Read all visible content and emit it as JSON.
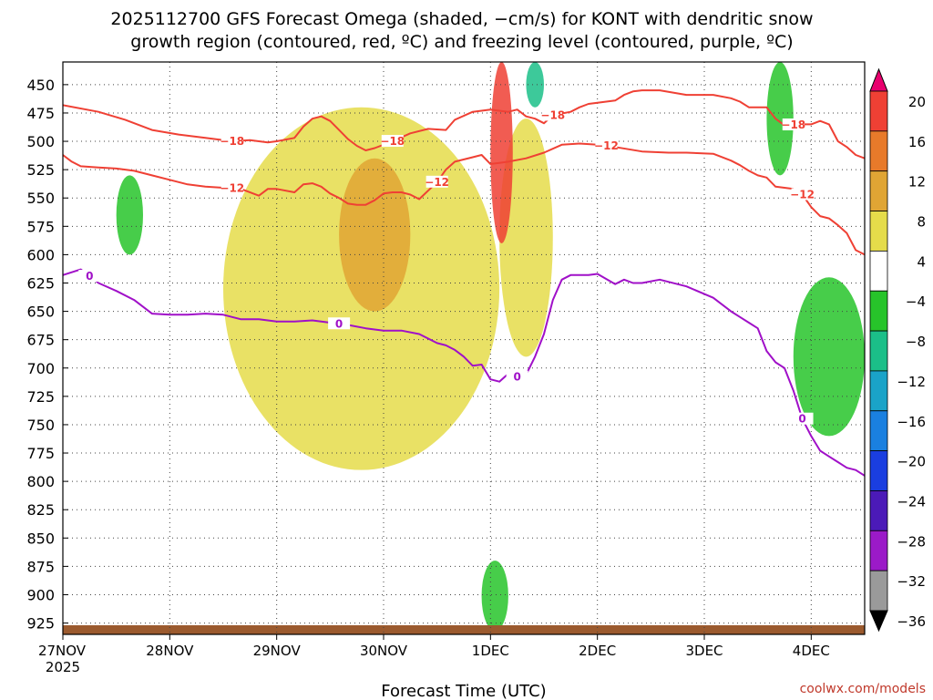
{
  "chart_data": {
    "type": "heatmap",
    "title_line1": "2025112700 GFS Forecast Omega (shaded, −cm/s) for KONT with dendritic snow",
    "title_line2": "growth region (contoured, red, ºC) and freezing level (contoured, purple, ºC)",
    "xlabel": "Forecast Time (UTC)",
    "x_ticks": [
      {
        "label": "27NOV",
        "hour": 0
      },
      {
        "label": "28NOV",
        "hour": 24
      },
      {
        "label": "29NOV",
        "hour": 48
      },
      {
        "label": "30NOV",
        "hour": 72
      },
      {
        "label": "1DEC",
        "hour": 96
      },
      {
        "label": "2DEC",
        "hour": 120
      },
      {
        "label": "3DEC",
        "hour": 144
      },
      {
        "label": "4DEC",
        "hour": 168
      }
    ],
    "x_year_label": "2025",
    "xlim": [
      0,
      180
    ],
    "y_ticks": [
      "450",
      "475",
      "500",
      "525",
      "550",
      "575",
      "600",
      "625",
      "650",
      "675",
      "700",
      "725",
      "750",
      "775",
      "800",
      "825",
      "850",
      "875",
      "900",
      "925"
    ],
    "ylim": [
      430,
      935
    ],
    "colorbar": {
      "labels": [
        "20",
        "16",
        "12",
        "8",
        "4",
        "−4",
        "−8",
        "−12",
        "−16",
        "−20",
        "−24",
        "−28",
        "−32",
        "−36"
      ],
      "colors": [
        "#e8006e",
        "#ef4034",
        "#e87a2a",
        "#e0a534",
        "#e5dc4a",
        "#ffffff",
        "#27c42a",
        "#1bbf88",
        "#1aa3c8",
        "#1a80e0",
        "#1a3ee0",
        "#4b1ab8",
        "#9b1ac8",
        "#9a9a9a",
        "#000000"
      ]
    },
    "series": [
      {
        "name": "-18 ºC (DGZ top)",
        "color": "#ef4034",
        "hours": [
          0,
          8,
          14,
          20,
          26,
          32,
          38,
          42,
          44,
          46,
          48,
          52,
          54,
          56,
          58,
          60,
          62,
          64,
          66,
          68,
          70,
          74,
          78,
          82,
          86,
          88,
          92,
          96,
          100,
          102,
          104,
          106,
          108,
          110,
          114,
          116,
          118,
          120,
          124,
          126,
          128,
          130,
          134,
          140,
          146,
          150,
          152,
          154,
          158,
          160,
          162,
          166,
          168,
          170,
          172,
          174,
          176,
          178,
          180
        ],
        "values": [
          468,
          474,
          481,
          490,
          494,
          497,
          500,
          499,
          500,
          501,
          500,
          497,
          487,
          480,
          478,
          482,
          490,
          498,
          504,
          508,
          506,
          500,
          493,
          489,
          490,
          481,
          474,
          472,
          474,
          472,
          478,
          480,
          484,
          477,
          474,
          470,
          467,
          466,
          464,
          459,
          456,
          455,
          455,
          459,
          459,
          462,
          465,
          470,
          470,
          480,
          486,
          485,
          485,
          482,
          485,
          500,
          505,
          512,
          515
        ]
      },
      {
        "name": "-12 ºC (DGZ base)",
        "color": "#ef4034",
        "hours": [
          0,
          2,
          4,
          8,
          12,
          16,
          20,
          24,
          28,
          32,
          36,
          40,
          44,
          46,
          48,
          52,
          54,
          56,
          58,
          60,
          62,
          64,
          66,
          68,
          70,
          72,
          74,
          76,
          78,
          80,
          84,
          86,
          88,
          92,
          94,
          96,
          98,
          100,
          104,
          108,
          112,
          116,
          120,
          124,
          130,
          136,
          140,
          146,
          150,
          152,
          154,
          156,
          158,
          160,
          164,
          166,
          168,
          170,
          172,
          174,
          176,
          178,
          180
        ],
        "values": [
          512,
          518,
          522,
          523,
          524,
          526,
          530,
          534,
          538,
          540,
          541,
          542,
          548,
          542,
          542,
          545,
          538,
          537,
          540,
          546,
          550,
          555,
          556,
          556,
          552,
          546,
          545,
          545,
          547,
          551,
          536,
          525,
          518,
          514,
          512,
          520,
          519,
          518,
          515,
          510,
          503,
          502,
          503,
          505,
          509,
          510,
          510,
          511,
          517,
          521,
          526,
          530,
          532,
          540,
          542,
          547,
          558,
          566,
          568,
          574,
          581,
          596,
          600
        ]
      },
      {
        "name": "0 ºC (freezing level)",
        "color": "#a010c8",
        "hours": [
          0,
          4,
          8,
          12,
          16,
          20,
          24,
          28,
          32,
          36,
          40,
          44,
          48,
          52,
          56,
          60,
          64,
          68,
          72,
          76,
          80,
          84,
          86,
          88,
          90,
          92,
          94,
          96,
          98,
          100,
          102,
          104,
          106,
          108,
          110,
          112,
          114,
          116,
          118,
          120,
          124,
          126,
          128,
          130,
          134,
          140,
          146,
          150,
          152,
          154,
          156,
          158,
          160,
          162,
          164,
          166,
          168,
          170,
          172,
          174,
          176,
          178,
          180
        ],
        "values": [
          618,
          613,
          625,
          632,
          640,
          652,
          653,
          653,
          652,
          653,
          657,
          657,
          659,
          659,
          658,
          660,
          662,
          665,
          667,
          667,
          670,
          678,
          680,
          684,
          690,
          698,
          697,
          710,
          712,
          705,
          708,
          706,
          690,
          670,
          640,
          622,
          618,
          618,
          618,
          617,
          626,
          622,
          625,
          625,
          622,
          628,
          638,
          650,
          655,
          660,
          665,
          685,
          695,
          700,
          720,
          745,
          760,
          773,
          778,
          783,
          788,
          790,
          795
        ]
      }
    ],
    "contour_labels": [
      {
        "text": "−18",
        "series": 0
      },
      {
        "text": "−12",
        "series": 1
      },
      {
        "text": "0",
        "series": 2
      }
    ],
    "omega_shading": [
      {
        "level": "4",
        "color": "#e5dc4a",
        "hours": [
          36,
          98
        ],
        "pressure": [
          470,
          790
        ]
      },
      {
        "level": "4",
        "color": "#e5dc4a",
        "hours": [
          98,
          110
        ],
        "pressure": [
          480,
          690
        ]
      },
      {
        "level": "8",
        "color": "#e0a534",
        "hours": [
          62,
          78
        ],
        "pressure": [
          515,
          650
        ]
      },
      {
        "level": "16",
        "color": "#ef4034",
        "hours": [
          96,
          101
        ],
        "pressure": [
          430,
          590
        ]
      },
      {
        "level": "-12",
        "color": "#1bbf88",
        "hours": [
          104,
          108
        ],
        "pressure": [
          430,
          470
        ]
      },
      {
        "level": "-8",
        "color": "#27c42a",
        "hours": [
          158,
          164
        ],
        "pressure": [
          430,
          530
        ]
      },
      {
        "level": "-8",
        "color": "#27c42a",
        "hours": [
          164,
          180
        ],
        "pressure": [
          620,
          760
        ]
      },
      {
        "level": "-8",
        "color": "#27c42a",
        "hours": [
          12,
          18
        ],
        "pressure": [
          530,
          600
        ]
      },
      {
        "level": "-8",
        "color": "#27c42a",
        "hours": [
          94,
          100
        ],
        "pressure": [
          870,
          932
        ]
      }
    ]
  },
  "credit": "coolwx.com/models"
}
